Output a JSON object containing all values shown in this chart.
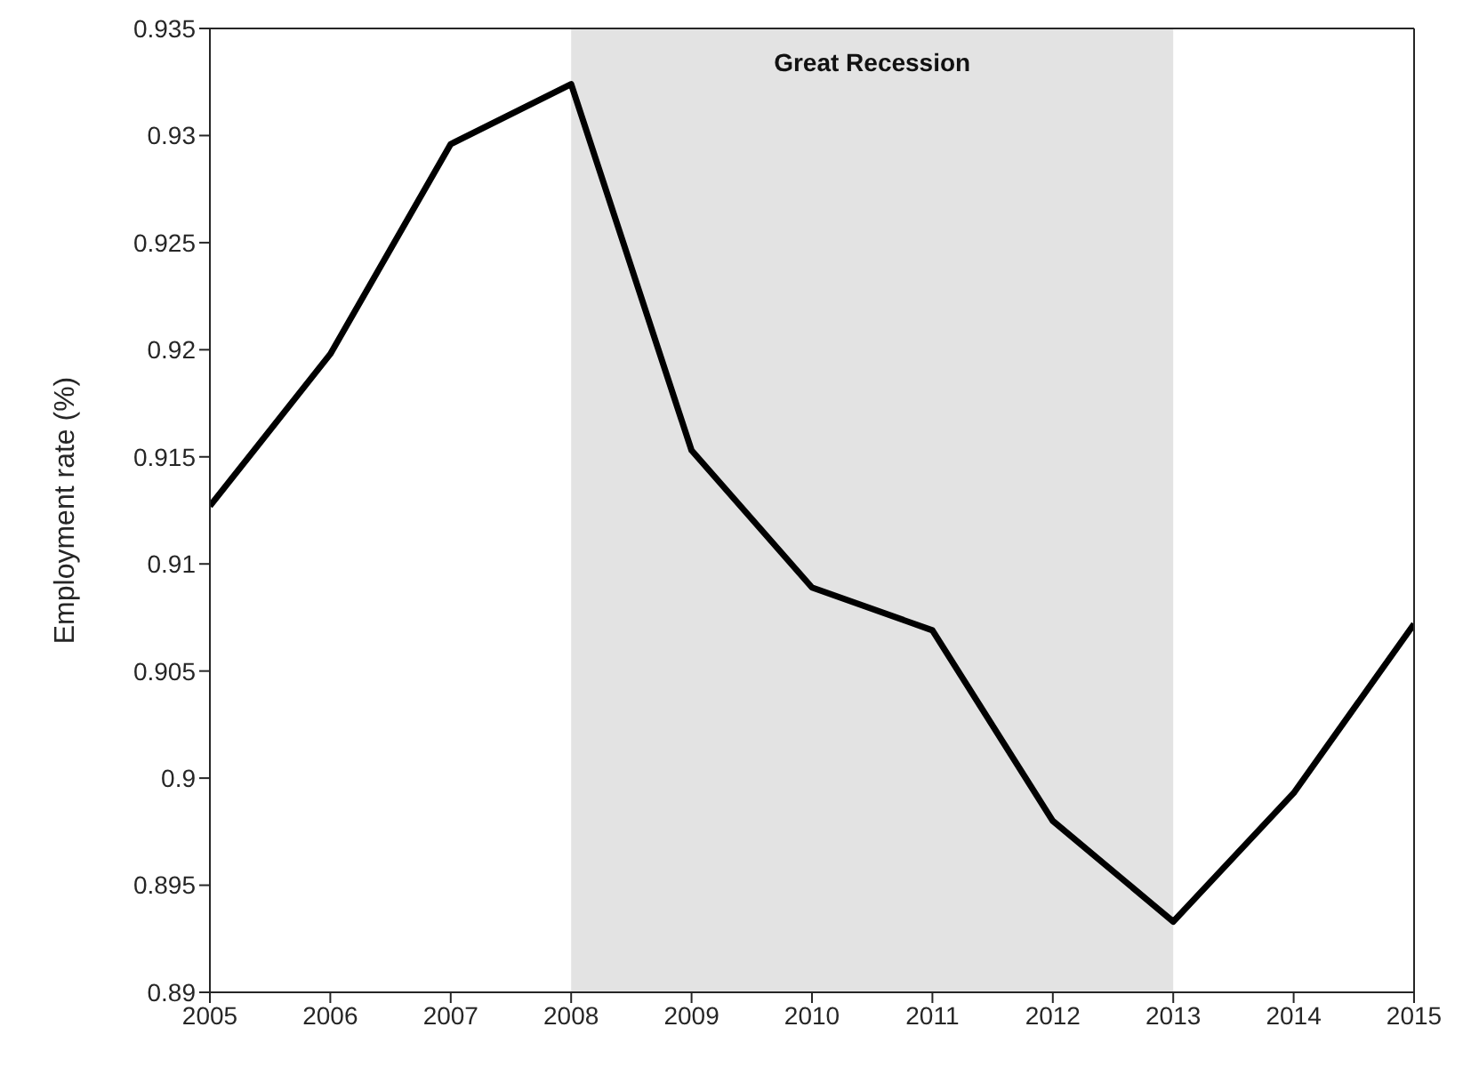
{
  "chart_data": {
    "type": "line",
    "ylabel": "Employment rate (%)",
    "x": [
      2005,
      2006,
      2007,
      2008,
      2009,
      2010,
      2011,
      2012,
      2013,
      2014,
      2015
    ],
    "series": [
      {
        "color": "#000000",
        "values": [
          0.9127,
          0.9198,
          0.9296,
          0.9324,
          0.9153,
          0.9089,
          0.9069,
          0.898,
          0.8933,
          0.8993,
          0.9072
        ]
      }
    ],
    "xlim": [
      2005,
      2015
    ],
    "xticks": [
      2005,
      2006,
      2007,
      2008,
      2009,
      2010,
      2011,
      2012,
      2013,
      2014,
      2015
    ],
    "ylim": [
      0.89,
      0.935
    ],
    "yticks": [
      0.89,
      0.895,
      0.9,
      0.905,
      0.91,
      0.915,
      0.92,
      0.925,
      0.93,
      0.935
    ],
    "bands": [
      {
        "axis": "x",
        "from": 2008,
        "to": 2013,
        "label": "Great Recession",
        "color": "#e3e3e3"
      }
    ],
    "grid": false,
    "legend": false,
    "marker": "none",
    "line_style": "solid"
  }
}
